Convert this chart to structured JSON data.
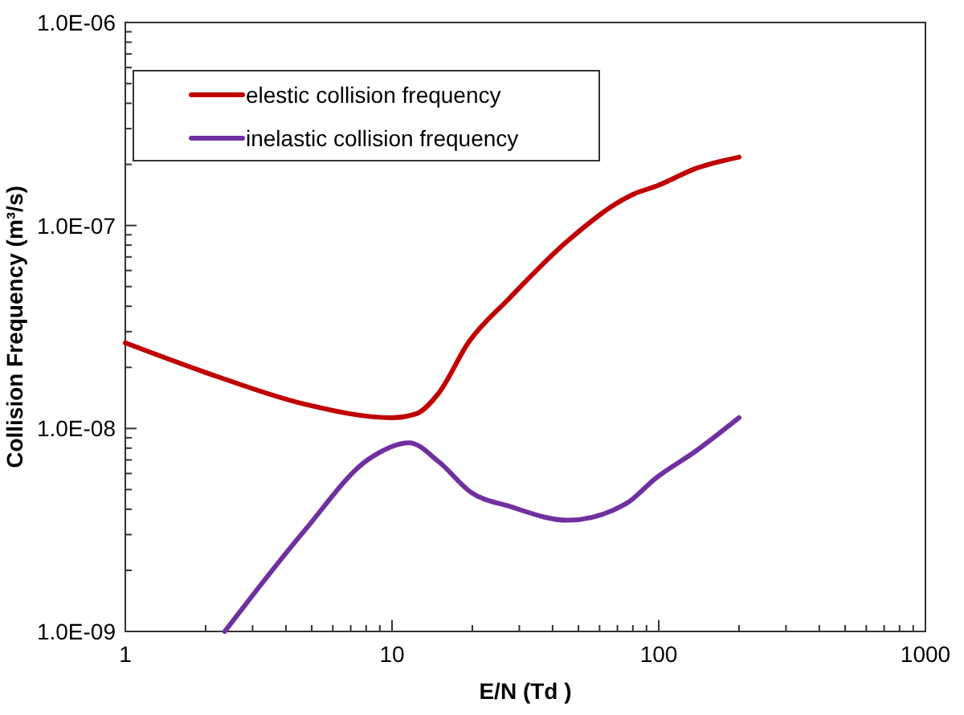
{
  "chart_data": {
    "type": "line",
    "xlabel": "E/N (Td )",
    "ylabel": "Collision Frequency (m³/s)",
    "log": "xy",
    "xlim": [
      1,
      1000
    ],
    "xticks": [
      1,
      10,
      100,
      1000
    ],
    "ylim": [
      1e-09,
      1e-06
    ],
    "yticks": [
      {
        "value": 1e-09,
        "label": "1.0E-09"
      },
      {
        "value": 1e-08,
        "label": "1.0E-08"
      },
      {
        "value": 1e-07,
        "label": "1.0E-07"
      },
      {
        "value": 1e-06,
        "label": "1.0E-06"
      }
    ],
    "grid": false,
    "legend": "top left",
    "line_style": "solid",
    "series": [
      {
        "name": "elestic collision frequency",
        "color": "#c00000",
        "x": [
          1,
          2.19,
          4.68,
          10,
          12.3,
          15,
          19.3,
          27.5,
          45.6,
          79.8,
          100,
          138,
          200
        ],
        "values": [
          2.64e-08,
          1.81e-08,
          1.32e-08,
          1.13e-08,
          1.18e-08,
          1.5e-08,
          2.64e-08,
          4.37e-08,
          8.4e-08,
          1.42e-07,
          1.58e-07,
          1.91e-07,
          2.17e-07
        ]
      },
      {
        "name": "inelastic collision frequency",
        "color": "#7030a0",
        "x": [
          2.36,
          4.68,
          8.17,
          11.6,
          15,
          19.8,
          27.5,
          45.6,
          75.6,
          97,
          138,
          200
        ],
        "values": [
          1e-09,
          3.12e-09,
          7.06e-09,
          8.5e-09,
          6.84e-09,
          4.84e-09,
          4.14e-09,
          3.53e-09,
          4.27e-09,
          5.66e-09,
          7.75e-09,
          1.13e-08
        ]
      }
    ]
  }
}
